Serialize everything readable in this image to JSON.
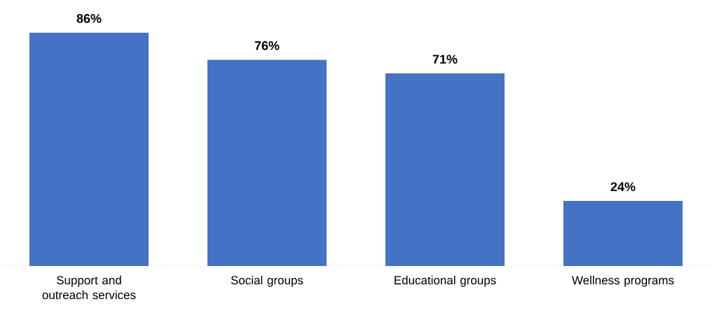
{
  "chart_data": {
    "type": "bar",
    "categories": [
      "Support and outreach services",
      "Social groups",
      "Educational groups",
      "Wellness programs"
    ],
    "values": [
      86,
      76,
      71,
      24
    ],
    "value_labels": [
      "86%",
      "76%",
      "71%",
      "24%"
    ],
    "color": "#4472c4"
  }
}
